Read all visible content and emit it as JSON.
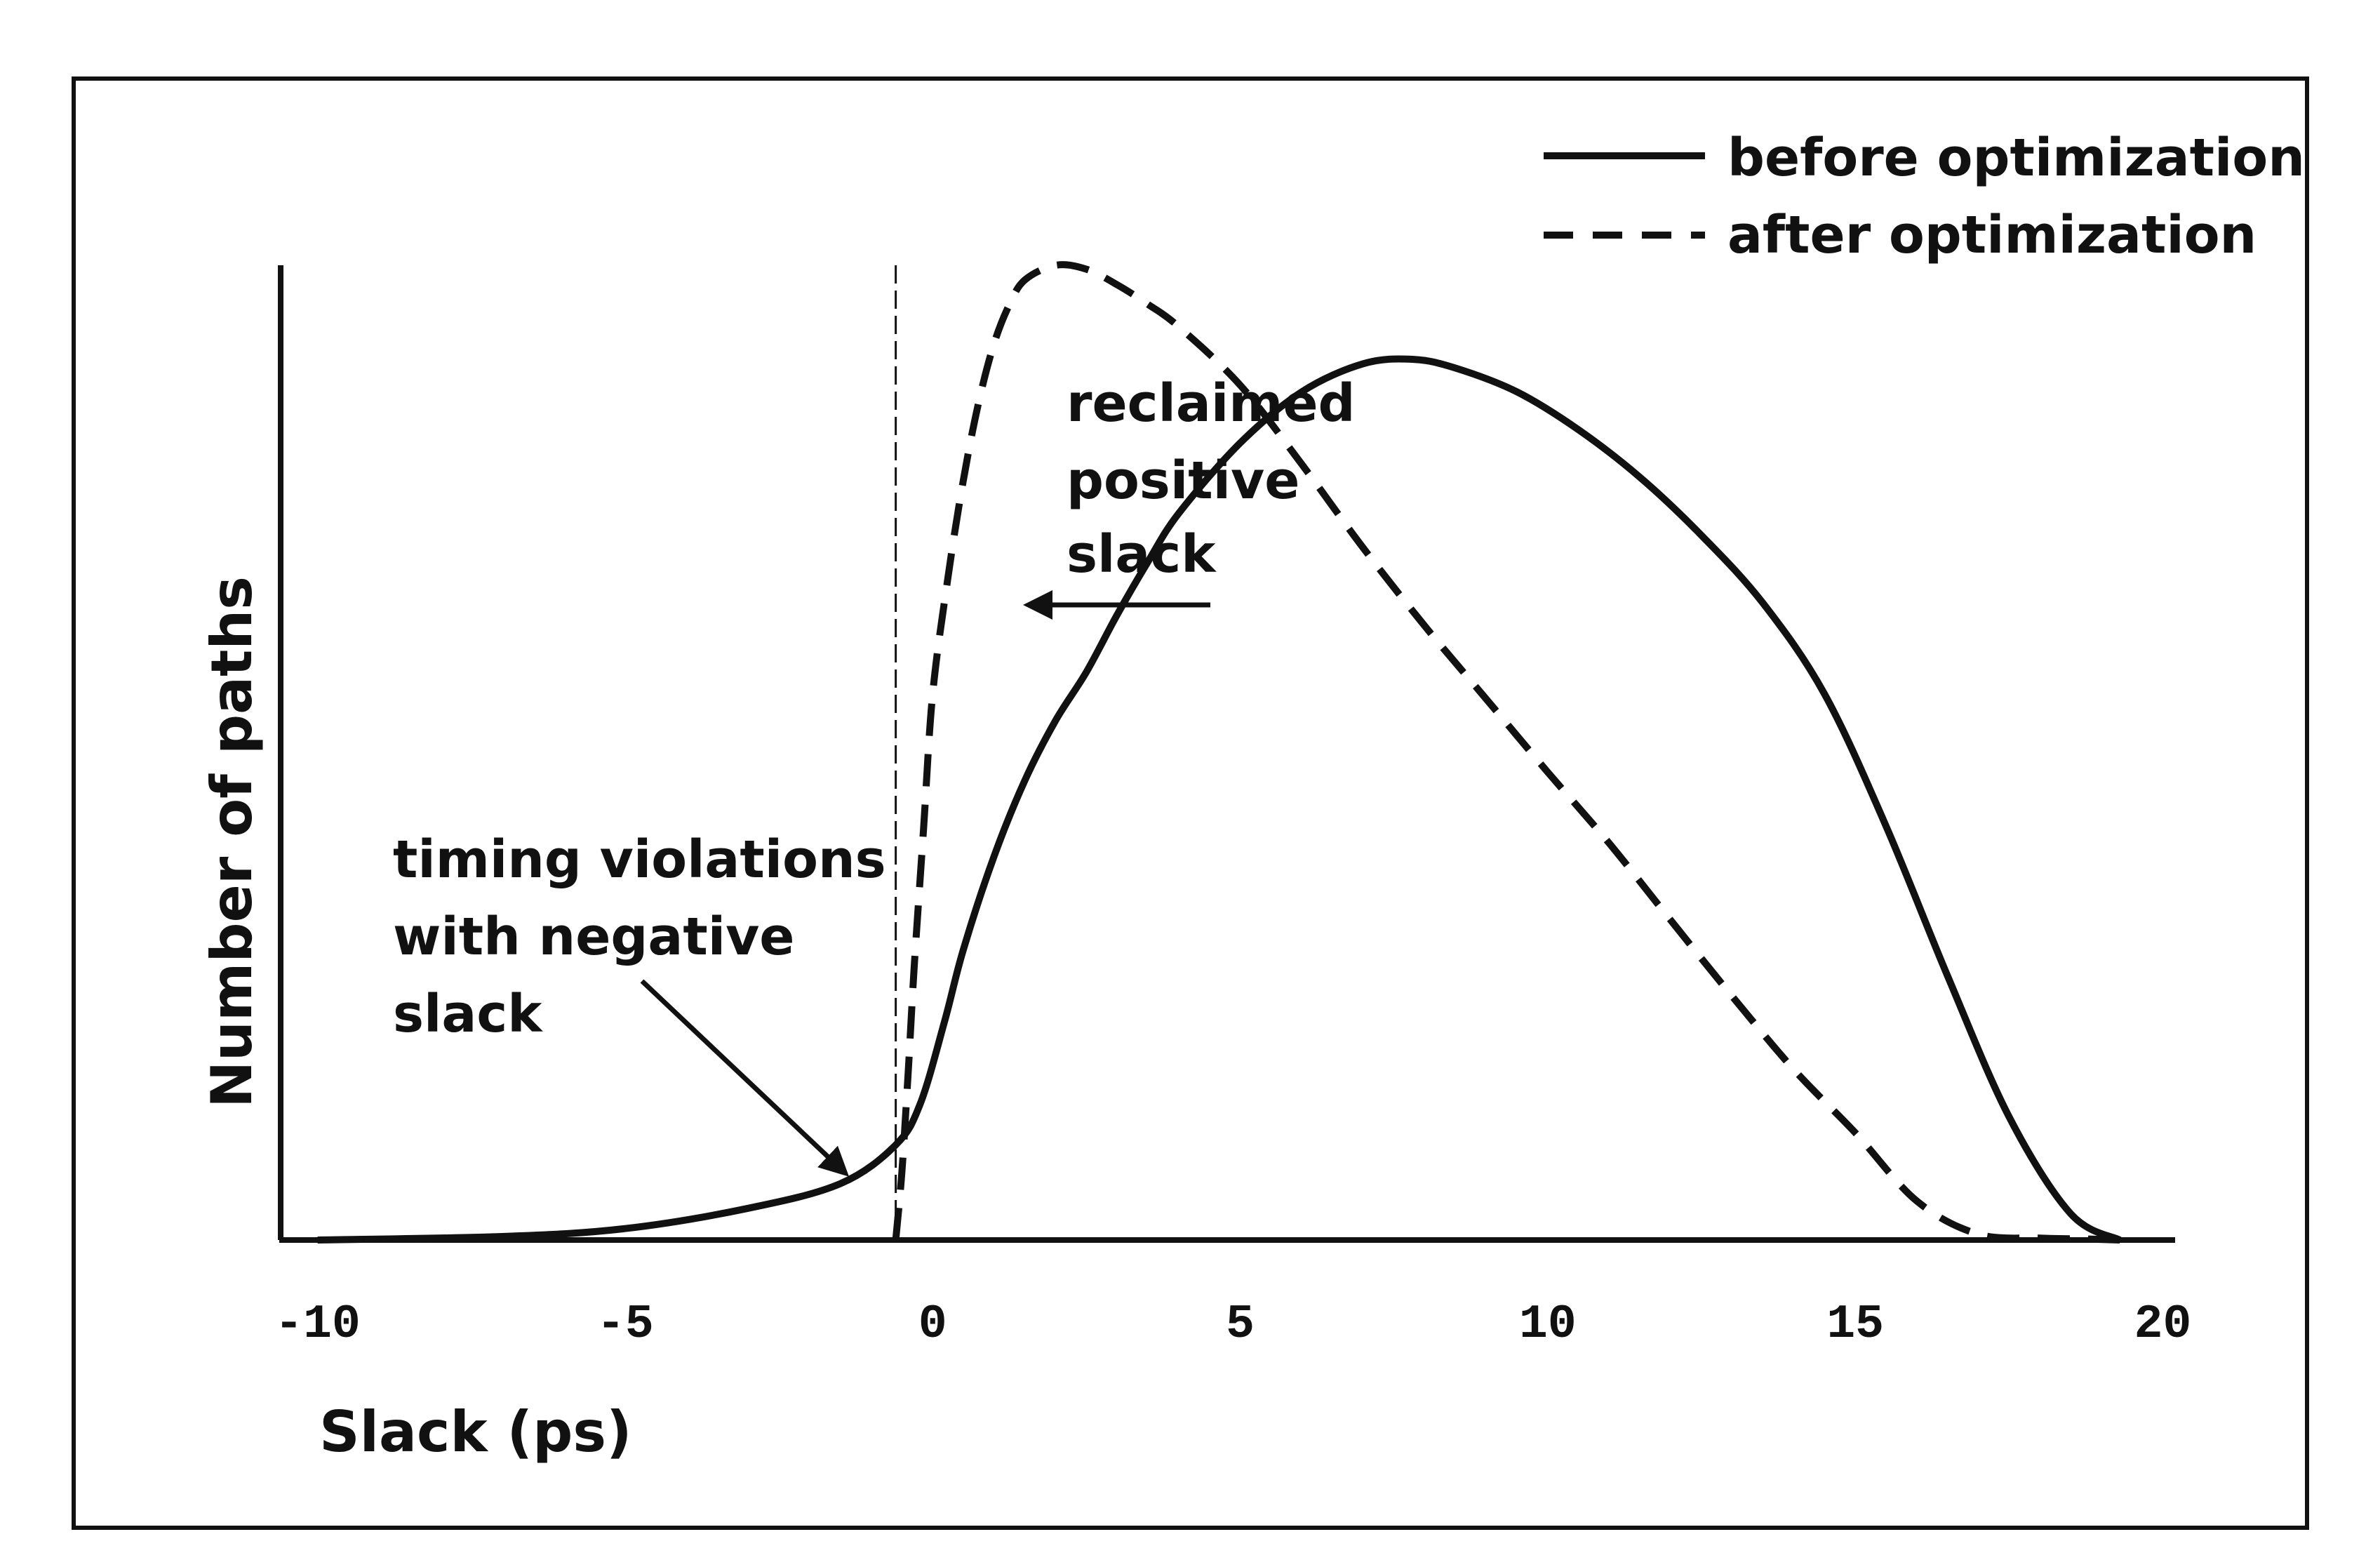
{
  "chart_data": {
    "type": "line",
    "xlabel": "Slack (ps)",
    "ylabel": "Number of paths",
    "xlim": [
      -10.6,
      20.2
    ],
    "ylim": [
      0,
      100
    ],
    "x_ticks": [
      -10,
      -5,
      0,
      5,
      10,
      15,
      20
    ],
    "x_tick_labels": [
      "-10",
      "-5",
      "0",
      "5",
      "10",
      "15",
      "20"
    ],
    "y_ticks_shown": false,
    "grid": false,
    "legend": {
      "position": "top-right",
      "entries": [
        {
          "label": "before optimization",
          "style": "solid"
        },
        {
          "label": "after optimization",
          "style": "dashed"
        }
      ]
    },
    "series": [
      {
        "name": "before optimization",
        "style": "solid",
        "x": [
          -10,
          -7,
          -5,
          -3,
          -1.5,
          -0.6,
          -0.2,
          0.2,
          0.5,
          1.0,
          1.5,
          2,
          2.5,
          3,
          3.5,
          4,
          5,
          6,
          7,
          7.8,
          8.5,
          9.5,
          10.5,
          11.5,
          12.5,
          13.5,
          14.5,
          15.5,
          16.5,
          17.5,
          18.5,
          19.3
        ],
        "y": [
          0,
          0.4,
          1.3,
          3.6,
          6.4,
          10.8,
          15.5,
          25,
          33,
          43.6,
          52.2,
          59,
          64.5,
          71,
          77,
          82.5,
          90.5,
          96.3,
          99.5,
          100,
          99,
          96.3,
          92,
          86.6,
          80,
          72.3,
          62,
          47,
          30,
          14,
          3,
          0
        ]
      },
      {
        "name": "after optimization",
        "style": "dashed",
        "x": [
          -0.6,
          -0.5,
          -0.4,
          -0.3,
          -0.15,
          0,
          0.25,
          0.5,
          0.75,
          1.0,
          1.25,
          1.5,
          2.0,
          2.5,
          3.0,
          3.5,
          4.0,
          5.0,
          6.0,
          7.0,
          8.0,
          9.0,
          10.0,
          11.0,
          12.0,
          13.0,
          14.0,
          15.0,
          16.0,
          17.0,
          18.0,
          18.8,
          19.3
        ],
        "y": [
          0,
          7,
          17,
          28,
          42,
          56,
          68,
          78,
          86,
          92,
          96,
          98.5,
          100,
          99.6,
          98,
          96,
          93.7,
          87.7,
          79.6,
          71,
          63,
          55.5,
          48,
          40.7,
          32.8,
          25,
          17.5,
          11,
          4,
          0.6,
          0.2,
          0.1,
          0
        ]
      }
    ],
    "reference_line": {
      "x": -0.6,
      "style": "dashed-thin"
    },
    "annotations": [
      {
        "lines": [
          "timing violations",
          "with negative",
          "slack"
        ]
      },
      {
        "lines": [
          "reclaimed",
          "positive",
          "slack"
        ]
      }
    ]
  }
}
